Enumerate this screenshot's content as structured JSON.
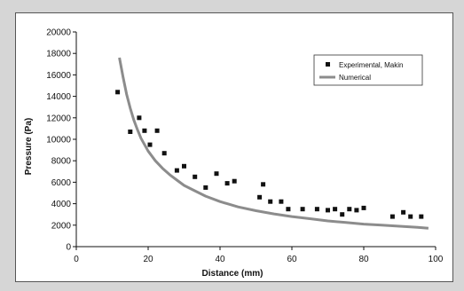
{
  "chart_data": {
    "type": "scatter",
    "title": "",
    "xlabel": "Distance (mm)",
    "ylabel": "Pressure (Pa)",
    "xlim": [
      0,
      100
    ],
    "ylim": [
      0,
      20000
    ],
    "xticks": [
      "0",
      "20",
      "40",
      "60",
      "80",
      "100"
    ],
    "yticks": [
      "0",
      "2000",
      "4000",
      "6000",
      "8000",
      "10000",
      "12000",
      "14000",
      "16000",
      "18000",
      "20000"
    ],
    "grid": false,
    "legend_position": "top-right",
    "series": [
      {
        "name": "Experimental, Makin",
        "kind": "scatter",
        "color": "#111111",
        "x": [
          11.5,
          15,
          17.5,
          19,
          20.5,
          22.5,
          24.5,
          28,
          30,
          33,
          36,
          39,
          42,
          44,
          51,
          52,
          54,
          57,
          59,
          63,
          67,
          70,
          72,
          74,
          76,
          78,
          80,
          88,
          91,
          93,
          96
        ],
        "y": [
          14400,
          10700,
          12000,
          10800,
          9500,
          10800,
          8700,
          7100,
          7500,
          6500,
          5500,
          6800,
          5900,
          6100,
          4600,
          5800,
          4200,
          4200,
          3500,
          3500,
          3500,
          3400,
          3500,
          3000,
          3500,
          3400,
          3600,
          2800,
          3200,
          2800,
          2800
        ]
      },
      {
        "name": "Numerical",
        "kind": "line",
        "color": "#8c8c8c",
        "x": [
          12,
          13,
          14,
          15,
          16,
          17,
          18,
          20,
          22,
          24,
          26,
          28,
          30,
          33,
          36,
          40,
          45,
          50,
          55,
          60,
          65,
          70,
          75,
          80,
          85,
          90,
          95,
          98
        ],
        "y": [
          17600,
          15800,
          14200,
          12900,
          11800,
          10900,
          10100,
          8900,
          8000,
          7300,
          6700,
          6200,
          5700,
          5200,
          4700,
          4200,
          3700,
          3350,
          3050,
          2800,
          2600,
          2400,
          2250,
          2100,
          2000,
          1900,
          1800,
          1720
        ]
      }
    ]
  }
}
